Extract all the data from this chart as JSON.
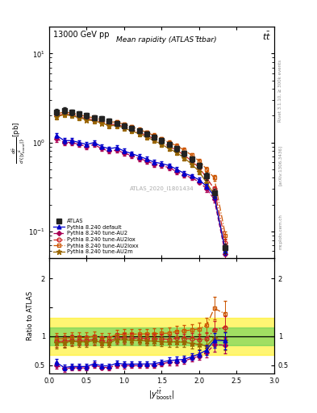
{
  "title_top": "13000 GeV pp",
  "title_right": "t̅t",
  "plot_title": "Mean rapidity (ATLAS t̅tbar)",
  "watermark": "ATLAS_2020_I1801434",
  "right_label1": "Rivet 3.1.10, ≥ 300k events",
  "right_label2": "[arXiv:1306.3436]",
  "right_label3": "mcplots.cern.ch",
  "x_bins": [
    0.1,
    0.2,
    0.3,
    0.4,
    0.5,
    0.6,
    0.7,
    0.8,
    0.9,
    1.0,
    1.1,
    1.2,
    1.3,
    1.4,
    1.5,
    1.6,
    1.7,
    1.8,
    1.9,
    2.0,
    2.1,
    2.2,
    2.35
  ],
  "y_atlas": [
    2.2,
    2.3,
    2.2,
    2.1,
    2.0,
    1.9,
    1.85,
    1.75,
    1.65,
    1.55,
    1.45,
    1.35,
    1.25,
    1.15,
    1.05,
    0.95,
    0.85,
    0.75,
    0.65,
    0.55,
    0.42,
    0.27,
    0.065
  ],
  "y_atlas_err": [
    0.18,
    0.18,
    0.16,
    0.15,
    0.14,
    0.13,
    0.12,
    0.11,
    0.1,
    0.1,
    0.09,
    0.08,
    0.08,
    0.07,
    0.07,
    0.06,
    0.06,
    0.05,
    0.05,
    0.04,
    0.04,
    0.03,
    0.008
  ],
  "y_default": [
    1.2,
    1.05,
    1.05,
    1.0,
    0.95,
    1.0,
    0.9,
    0.85,
    0.88,
    0.8,
    0.75,
    0.7,
    0.65,
    0.6,
    0.58,
    0.55,
    0.5,
    0.45,
    0.42,
    0.38,
    0.32,
    0.25,
    0.06
  ],
  "y_default_err": [
    0.08,
    0.07,
    0.07,
    0.06,
    0.06,
    0.06,
    0.05,
    0.05,
    0.05,
    0.05,
    0.04,
    0.04,
    0.04,
    0.04,
    0.03,
    0.03,
    0.03,
    0.03,
    0.02,
    0.02,
    0.02,
    0.02,
    0.006
  ],
  "y_au2": [
    1.1,
    1.0,
    1.0,
    0.95,
    0.9,
    0.95,
    0.85,
    0.8,
    0.82,
    0.76,
    0.71,
    0.66,
    0.62,
    0.57,
    0.55,
    0.52,
    0.47,
    0.43,
    0.4,
    0.36,
    0.3,
    0.23,
    0.055
  ],
  "y_au2_err": [
    0.08,
    0.07,
    0.07,
    0.06,
    0.06,
    0.06,
    0.05,
    0.05,
    0.05,
    0.05,
    0.04,
    0.04,
    0.04,
    0.04,
    0.03,
    0.03,
    0.03,
    0.03,
    0.02,
    0.02,
    0.02,
    0.02,
    0.006
  ],
  "y_au2lox": [
    2.0,
    2.1,
    2.05,
    1.95,
    1.85,
    1.8,
    1.7,
    1.6,
    1.6,
    1.5,
    1.4,
    1.3,
    1.2,
    1.1,
    1.0,
    0.9,
    0.82,
    0.72,
    0.62,
    0.52,
    0.4,
    0.3,
    0.075
  ],
  "y_au2lox_err": [
    0.13,
    0.13,
    0.12,
    0.11,
    0.11,
    0.1,
    0.09,
    0.09,
    0.09,
    0.08,
    0.08,
    0.07,
    0.07,
    0.06,
    0.06,
    0.05,
    0.05,
    0.04,
    0.04,
    0.03,
    0.03,
    0.02,
    0.008
  ],
  "y_au2loxx": [
    2.1,
    2.2,
    2.15,
    2.05,
    1.95,
    1.9,
    1.8,
    1.7,
    1.7,
    1.6,
    1.5,
    1.4,
    1.3,
    1.2,
    1.1,
    1.0,
    0.92,
    0.82,
    0.72,
    0.62,
    0.5,
    0.4,
    0.09
  ],
  "y_au2loxx_err": [
    0.14,
    0.14,
    0.13,
    0.12,
    0.11,
    0.1,
    0.1,
    0.09,
    0.09,
    0.09,
    0.08,
    0.07,
    0.07,
    0.07,
    0.06,
    0.06,
    0.05,
    0.05,
    0.04,
    0.04,
    0.03,
    0.03,
    0.009
  ],
  "y_au2m": [
    1.95,
    2.05,
    2.0,
    1.9,
    1.8,
    1.75,
    1.65,
    1.55,
    1.55,
    1.45,
    1.35,
    1.25,
    1.15,
    1.05,
    0.95,
    0.85,
    0.77,
    0.67,
    0.57,
    0.47,
    0.35,
    0.26,
    0.06
  ],
  "y_au2m_err": [
    0.13,
    0.13,
    0.12,
    0.11,
    0.1,
    0.1,
    0.09,
    0.09,
    0.09,
    0.08,
    0.07,
    0.07,
    0.06,
    0.06,
    0.05,
    0.05,
    0.05,
    0.04,
    0.04,
    0.03,
    0.03,
    0.02,
    0.007
  ],
  "ratio_green_lo": 0.85,
  "ratio_green_hi": 1.15,
  "ratio_yellow_lo": 0.68,
  "ratio_yellow_hi": 1.32,
  "color_atlas": "#222222",
  "color_default": "#0000cc",
  "color_au2": "#aa0055",
  "color_au2lox": "#cc2222",
  "color_au2loxx": "#cc5500",
  "color_au2m": "#996600",
  "ylim_main": [
    0.05,
    20
  ],
  "xlim": [
    0,
    3.0
  ],
  "ylim_ratio": [
    0.35,
    2.35
  ]
}
